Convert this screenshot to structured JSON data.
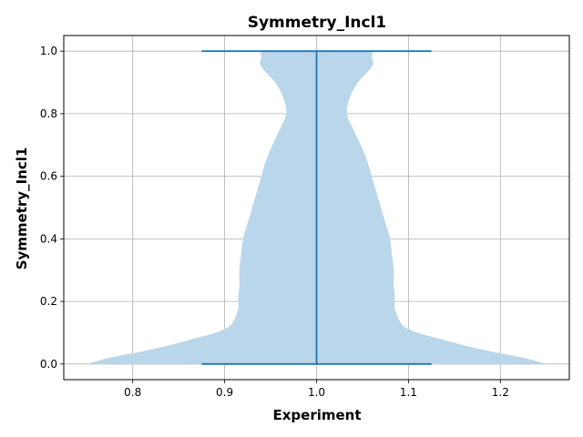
{
  "chart_data": {
    "type": "violin",
    "title": "Symmetry_Incl1",
    "xlabel": "Experiment",
    "ylabel": "Symmetry_Incl1",
    "xlim": [
      0.725,
      1.275
    ],
    "ylim": [
      -0.05,
      1.05
    ],
    "xticks": [
      "0.8",
      "0.9",
      "1.0",
      "1.1",
      "1.2"
    ],
    "yticks": [
      "0.0",
      "0.2",
      "0.4",
      "0.6",
      "0.8",
      "1.0"
    ],
    "grid": true,
    "colors": {
      "body": "#bad6ea",
      "lines": "#1f77b4",
      "grid": "#b0b0b0"
    },
    "violin": {
      "position": 1.0,
      "min": 0.0,
      "max": 1.0,
      "cap_halfwidth": 0.125,
      "profile": [
        [
          0.0,
          0.25
        ],
        [
          0.02,
          0.225
        ],
        [
          0.04,
          0.19
        ],
        [
          0.06,
          0.16
        ],
        [
          0.08,
          0.135
        ],
        [
          0.1,
          0.11
        ],
        [
          0.12,
          0.095
        ],
        [
          0.14,
          0.09
        ],
        [
          0.16,
          0.087
        ],
        [
          0.18,
          0.085
        ],
        [
          0.2,
          0.085
        ],
        [
          0.22,
          0.085
        ],
        [
          0.25,
          0.084
        ],
        [
          0.3,
          0.084
        ],
        [
          0.35,
          0.082
        ],
        [
          0.4,
          0.08
        ],
        [
          0.45,
          0.075
        ],
        [
          0.5,
          0.07
        ],
        [
          0.55,
          0.065
        ],
        [
          0.6,
          0.06
        ],
        [
          0.65,
          0.055
        ],
        [
          0.7,
          0.048
        ],
        [
          0.75,
          0.04
        ],
        [
          0.8,
          0.033
        ],
        [
          0.85,
          0.036
        ],
        [
          0.9,
          0.045
        ],
        [
          0.95,
          0.06
        ],
        [
          0.98,
          0.06
        ],
        [
          1.0,
          0.05
        ]
      ]
    }
  }
}
